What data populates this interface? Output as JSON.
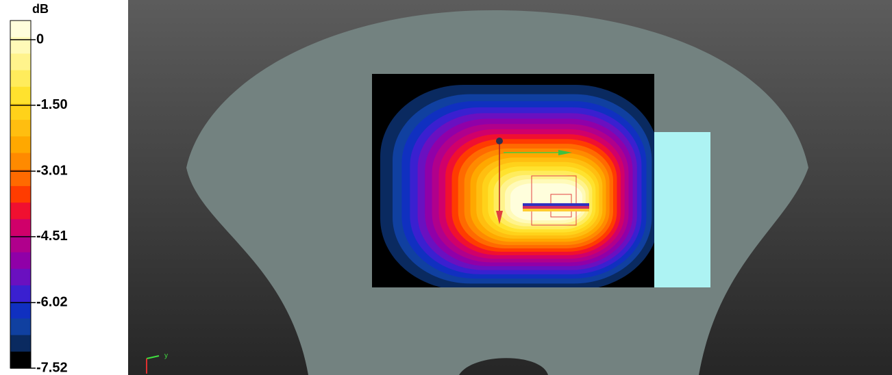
{
  "colorbar": {
    "title": "dB",
    "ticks": [
      0,
      {
        "value": -1.5,
        "label": "-1.50"
      },
      -3.01,
      -4.51,
      -6.02,
      -7.52
    ],
    "colors": [
      "#fffedc",
      "#fffab8",
      "#fff38c",
      "#ffec5c",
      "#ffe22e",
      "#ffd21a",
      "#ffbe10",
      "#ffa800",
      "#ff8a00",
      "#ff6a00",
      "#ff3c00",
      "#f01030",
      "#d0006a",
      "#b0008c",
      "#9000a8",
      "#6a10c0",
      "#3a20d0",
      "#1030c0",
      "#1040a0",
      "#0a2a60",
      "#000000"
    ]
  },
  "axis_triad": {
    "label": "y"
  }
}
